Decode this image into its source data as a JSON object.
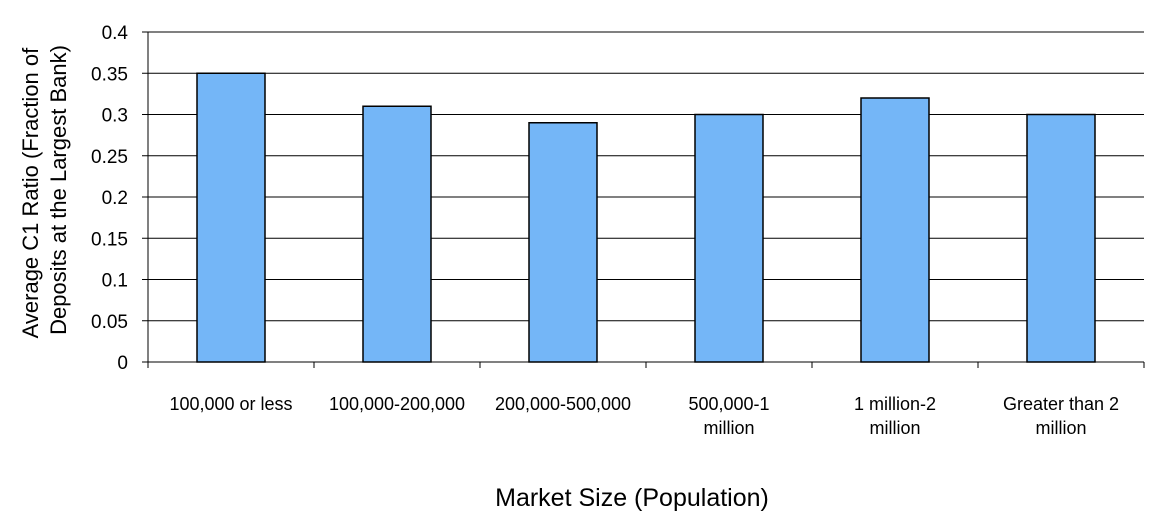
{
  "chart_data": {
    "type": "bar",
    "categories": [
      [
        "100,000 or less"
      ],
      [
        "100,000-200,000"
      ],
      [
        "200,000-500,000"
      ],
      [
        "500,000-1",
        "million"
      ],
      [
        "1 million-2",
        "million"
      ],
      [
        "Greater than 2",
        "million"
      ]
    ],
    "values": [
      0.35,
      0.31,
      0.29,
      0.3,
      0.32,
      0.3
    ],
    "yticks": [
      "0",
      "0.05",
      "0.1",
      "0.15",
      "0.2",
      "0.25",
      "0.3",
      "0.35",
      "0.4"
    ],
    "ylim": [
      0,
      0.4
    ],
    "xlabel": "Market Size (Population)",
    "ylabel": [
      "Average C1 Ratio (Fraction of",
      "Deposits at the Largest Bank)"
    ],
    "grid": true,
    "legend": "none",
    "colors": {
      "bar_fill": "#74b6f7",
      "bar_stroke": "#000000",
      "grid": "#000000"
    }
  }
}
